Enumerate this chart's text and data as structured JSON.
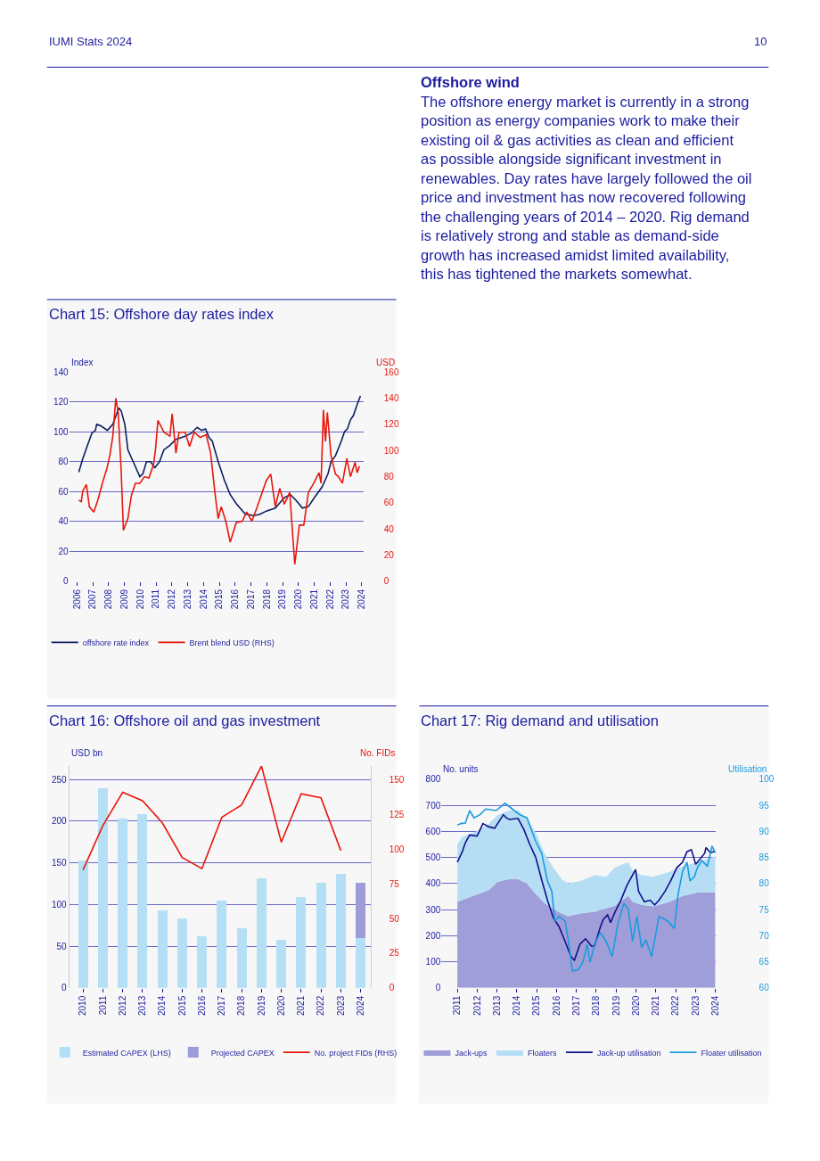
{
  "chart_data": [
    {
      "type": "other",
      "title": "Offshore wind",
      "annotations": [
        "IUMI Stats 2024",
        "10",
        "The offshore energy market is currently in a strong\nposition as energy companies work to make their\nexisting oil & gas activities as clean and efficient\nas possible alongside significant investment in\nrenewables. Day rates have largely followed the oil\nprice and investment has now recovered following\nthe challenging years of 2014 – 2020. Rig demand\nis relatively strong and stable as demand-side\ngrowth has increased amidst limited availability,\nthis has tightened the markets somewhat."
      ]
    },
    {
      "type": "line",
      "title": "Chart 15: Offshore day rates index",
      "ylabel": "Index",
      "y2label": "USD",
      "xlim": [
        2005.5,
        2024.1
      ],
      "xticks": [
        2006,
        2007,
        2008,
        2009,
        2010,
        2011,
        2012,
        2013,
        2014,
        2015,
        2016,
        2017,
        2018,
        2019,
        2020,
        2021,
        2022,
        2023,
        2024
      ],
      "ylim": [
        0,
        140
      ],
      "yticks": [
        0,
        20,
        40,
        60,
        80,
        100,
        120,
        140
      ],
      "y2lim": [
        0,
        160
      ],
      "y2ticks": [
        0,
        20,
        40,
        60,
        80,
        100,
        120,
        140,
        160
      ],
      "grid": "y",
      "legend": "bottom",
      "series": [
        {
          "name": "offshore rate index",
          "color": "#0b1f5e",
          "x": [
            2006.11,
            2006.36,
            2006.93,
            2007.16,
            2007.24,
            2007.5,
            2007.92,
            2008.26,
            2008.64,
            2008.79,
            2009.02,
            2009.21,
            2009.59,
            2009.97,
            2010.16,
            2010.39,
            2010.64,
            2010.92,
            2011.21,
            2011.49,
            2011.87,
            2012.25,
            2012.83,
            2013.21,
            2013.59,
            2013.87,
            2014.12,
            2014.35,
            2014.54,
            2014.92,
            2015.3,
            2015.68,
            2016.06,
            2016.63,
            2017.2,
            2017.58,
            2017.96,
            2018.53,
            2019.1,
            2019.48,
            2019.86,
            2020.24,
            2020.62,
            2021.0,
            2021.48,
            2021.86,
            2022.05,
            2022.33,
            2022.71,
            2022.9,
            2023.09,
            2023.28,
            2023.47,
            2023.66,
            2023.91
          ],
          "values": [
            73,
            82,
            99,
            101,
            105,
            104,
            101,
            105,
            116,
            114,
            105,
            88,
            79,
            70,
            72,
            80,
            80,
            76,
            80,
            88,
            91,
            95,
            97,
            99,
            103,
            101,
            102,
            96,
            94,
            80,
            68,
            58,
            52,
            45,
            44,
            45,
            47,
            49,
            56,
            58,
            54,
            49,
            50,
            56,
            63,
            72,
            80,
            84,
            94,
            100,
            102,
            108,
            111,
            117,
            124
          ]
        },
        {
          "name": "Brent blend USD (RHS)",
          "color": "#e8160c",
          "axis": "y2",
          "x": [
            2006.11,
            2006.27,
            2006.36,
            2006.59,
            2006.78,
            2007.06,
            2007.31,
            2007.6,
            2007.88,
            2008.07,
            2008.26,
            2008.45,
            2008.6,
            2008.79,
            2008.93,
            2009.21,
            2009.44,
            2009.69,
            2009.97,
            2010.26,
            2010.54,
            2010.83,
            2010.96,
            2011.11,
            2011.49,
            2011.87,
            2012.01,
            2012.25,
            2012.44,
            2012.83,
            2013.11,
            2013.4,
            2013.78,
            2014.16,
            2014.44,
            2014.73,
            2014.92,
            2015.11,
            2015.4,
            2015.68,
            2016.06,
            2016.44,
            2016.72,
            2017.05,
            2017.39,
            2017.67,
            2017.96,
            2018.24,
            2018.53,
            2018.81,
            2019.1,
            2019.44,
            2019.76,
            2020.05,
            2020.33,
            2020.62,
            2020.96,
            2021.29,
            2021.42,
            2021.57,
            2021.7,
            2021.82,
            2022.05,
            2022.33,
            2022.52,
            2022.77,
            2023.05,
            2023.28,
            2023.57,
            2023.7,
            2023.85
          ],
          "values": [
            62,
            61,
            69,
            74,
            57,
            53,
            62,
            75,
            86,
            96,
            111,
            140,
            129,
            84,
            39,
            48,
            66,
            75,
            75,
            80,
            79,
            89,
            101,
            123,
            114,
            111,
            128,
            98,
            114,
            114,
            103,
            114,
            110,
            112,
            98,
            66,
            48,
            57,
            46,
            30,
            45,
            46,
            53,
            46,
            57,
            67,
            77,
            82,
            57,
            71,
            59,
            68,
            13,
            43,
            43,
            68,
            75,
            83,
            75,
            131,
            107,
            129,
            96,
            82,
            80,
            75,
            94,
            80,
            91,
            83,
            88
          ]
        }
      ]
    },
    {
      "type": "bar",
      "title": "Chart 16: Offshore oil and gas investment",
      "ylabel": "USD bn",
      "y2label": "No. FIDs",
      "categories": [
        "2010",
        "2011",
        "2012",
        "2013",
        "2014",
        "2015",
        "2016",
        "2017",
        "2018",
        "2019",
        "2020",
        "2021",
        "2022",
        "2023",
        "2024"
      ],
      "ylim": [
        0,
        266
      ],
      "yticks": [
        0,
        50,
        100,
        150,
        200,
        250
      ],
      "y2lim": [
        0,
        160
      ],
      "y2ticks": [
        0,
        25,
        50,
        75,
        100,
        125,
        150
      ],
      "grid": "y",
      "legend": "bottom",
      "stacked": true,
      "series": [
        {
          "name": "Estimated CAPEX (LHS)",
          "color": "#b5dff5",
          "values": [
            153,
            239,
            203,
            208,
            93,
            83,
            62,
            105,
            71,
            131,
            58,
            109,
            126,
            137,
            60
          ]
        },
        {
          "name": "Projected CAPEX",
          "color": "#9d9bd8",
          "values": [
            null,
            null,
            null,
            null,
            null,
            null,
            null,
            null,
            null,
            null,
            null,
            null,
            null,
            null,
            66
          ]
        },
        {
          "name": "No. project FIDs (RHS)",
          "color": "#e8160c",
          "type": "line",
          "axis": "y2",
          "values": [
            85,
            117,
            141,
            135,
            119,
            94,
            86,
            123,
            132,
            160,
            105,
            140,
            137,
            99,
            null
          ]
        }
      ]
    },
    {
      "type": "area",
      "title": "Chart 17: Rig demand and utilisation",
      "ylabel": "No. units",
      "y2label": "Utilisation",
      "xlim": [
        2010.2,
        2024.0
      ],
      "xticks": [
        2011,
        2012,
        2013,
        2014,
        2015,
        2016,
        2017,
        2018,
        2019,
        2020,
        2021,
        2022,
        2023,
        2024
      ],
      "ylim": [
        0,
        800
      ],
      "yticks": [
        0,
        100,
        200,
        300,
        400,
        500,
        600,
        700,
        800
      ],
      "y2lim": [
        60,
        100
      ],
      "y2ticks": [
        60,
        65,
        70,
        75,
        80,
        85,
        90,
        95,
        100
      ],
      "grid": "y",
      "legend": "bottom",
      "stacked": true,
      "x": [
        2011.0,
        2011.25,
        2012.0,
        2012.58,
        2013.03,
        2013.62,
        2014.06,
        2014.5,
        2014.95,
        2015.39,
        2015.84,
        2016.28,
        2016.58,
        2017.17,
        2017.91,
        2018.5,
        2018.94,
        2019.61,
        2019.83,
        2020.28,
        2020.87,
        2021.61,
        2022.35,
        2023.09,
        2024.0
      ],
      "series": [
        {
          "name": "Jack-ups",
          "color": "#a09ed8",
          "values": [
            330,
            337,
            358,
            375,
            406,
            417,
            417,
            400,
            360,
            325,
            302,
            285,
            275,
            285,
            292,
            305,
            315,
            353,
            330,
            318,
            312,
            328,
            352,
            365,
            367
          ]
        },
        {
          "name": "Floaters",
          "color": "#b5def5",
          "values": [
            220,
            242,
            243,
            254,
            257,
            263,
            263,
            252,
            235,
            191,
            158,
            130,
            126,
            124,
            140,
            121,
            147,
            129,
            119,
            114,
            114,
            115,
            114,
            117,
            138
          ]
        },
        {
          "name": "Jack-up utilisation",
          "color": "#10108c",
          "type": "line",
          "axis": "y2",
          "x": [
            2011.0,
            2011.25,
            2011.4,
            2011.62,
            2011.99,
            2012.07,
            2012.29,
            2012.58,
            2012.88,
            2013.32,
            2013.47,
            2013.62,
            2014.06,
            2014.36,
            2014.65,
            2014.95,
            2015.25,
            2015.54,
            2015.84,
            2016.13,
            2016.43,
            2016.72,
            2016.9,
            2017.17,
            2017.31,
            2017.46,
            2017.76,
            2017.91,
            2018.21,
            2018.35,
            2018.57,
            2018.72,
            2018.94,
            2019.24,
            2019.54,
            2019.98,
            2020.13,
            2020.42,
            2020.72,
            2020.94,
            2021.16,
            2021.46,
            2021.75,
            2022.05,
            2022.35,
            2022.57,
            2022.79,
            2023.01,
            2023.23,
            2023.46,
            2023.53,
            2023.75,
            2024.0
          ],
          "values": [
            84.1,
            86.1,
            87.8,
            89.3,
            89.1,
            89.7,
            91.5,
            90.9,
            90.6,
            93.2,
            92.6,
            92.3,
            92.5,
            90.3,
            87.5,
            85.0,
            80.7,
            76.8,
            73.4,
            71.7,
            68.9,
            66.0,
            65.3,
            68.3,
            68.9,
            69.4,
            68.0,
            68.0,
            71.7,
            73.1,
            74.0,
            72.5,
            74.5,
            76.8,
            79.6,
            82.7,
            78.5,
            76.5,
            76.8,
            75.9,
            76.8,
            78.5,
            80.5,
            83.0,
            84.1,
            86.1,
            86.5,
            83.7,
            84.7,
            85.8,
            86.9,
            85.9,
            86.2
          ]
        },
        {
          "name": "Floater utilisation",
          "color": "#1a9be0",
          "type": "line",
          "axis": "y2",
          "x": [
            2011.0,
            2011.18,
            2011.4,
            2011.62,
            2011.84,
            2012.14,
            2012.43,
            2012.95,
            2013.4,
            2013.77,
            2014.14,
            2014.51,
            2014.95,
            2015.25,
            2015.54,
            2015.76,
            2015.91,
            2016.13,
            2016.43,
            2016.58,
            2016.8,
            2017.09,
            2017.32,
            2017.54,
            2017.69,
            2017.91,
            2018.2,
            2018.5,
            2018.8,
            2019.09,
            2019.39,
            2019.61,
            2019.83,
            2020.05,
            2020.28,
            2020.5,
            2020.79,
            2021.16,
            2021.61,
            2021.93,
            2022.12,
            2022.35,
            2022.57,
            2022.72,
            2022.94,
            2023.09,
            2023.31,
            2023.6,
            2023.83,
            2024.0
          ],
          "values": [
            91.2,
            91.5,
            91.6,
            94.0,
            92.6,
            93.2,
            94.3,
            94.0,
            95.4,
            94.3,
            93.2,
            92.6,
            88.1,
            85.8,
            80.5,
            78.5,
            72.8,
            73.7,
            72.8,
            69.4,
            63.2,
            63.5,
            64.9,
            68.3,
            64.9,
            68.3,
            70.6,
            68.9,
            66.0,
            72.3,
            76.2,
            75.1,
            68.9,
            73.7,
            67.7,
            69.2,
            66.0,
            73.7,
            72.8,
            71.4,
            77.9,
            82.4,
            84.1,
            80.5,
            81.3,
            83.0,
            84.4,
            83.3,
            87.2,
            85.8
          ]
        }
      ]
    }
  ]
}
